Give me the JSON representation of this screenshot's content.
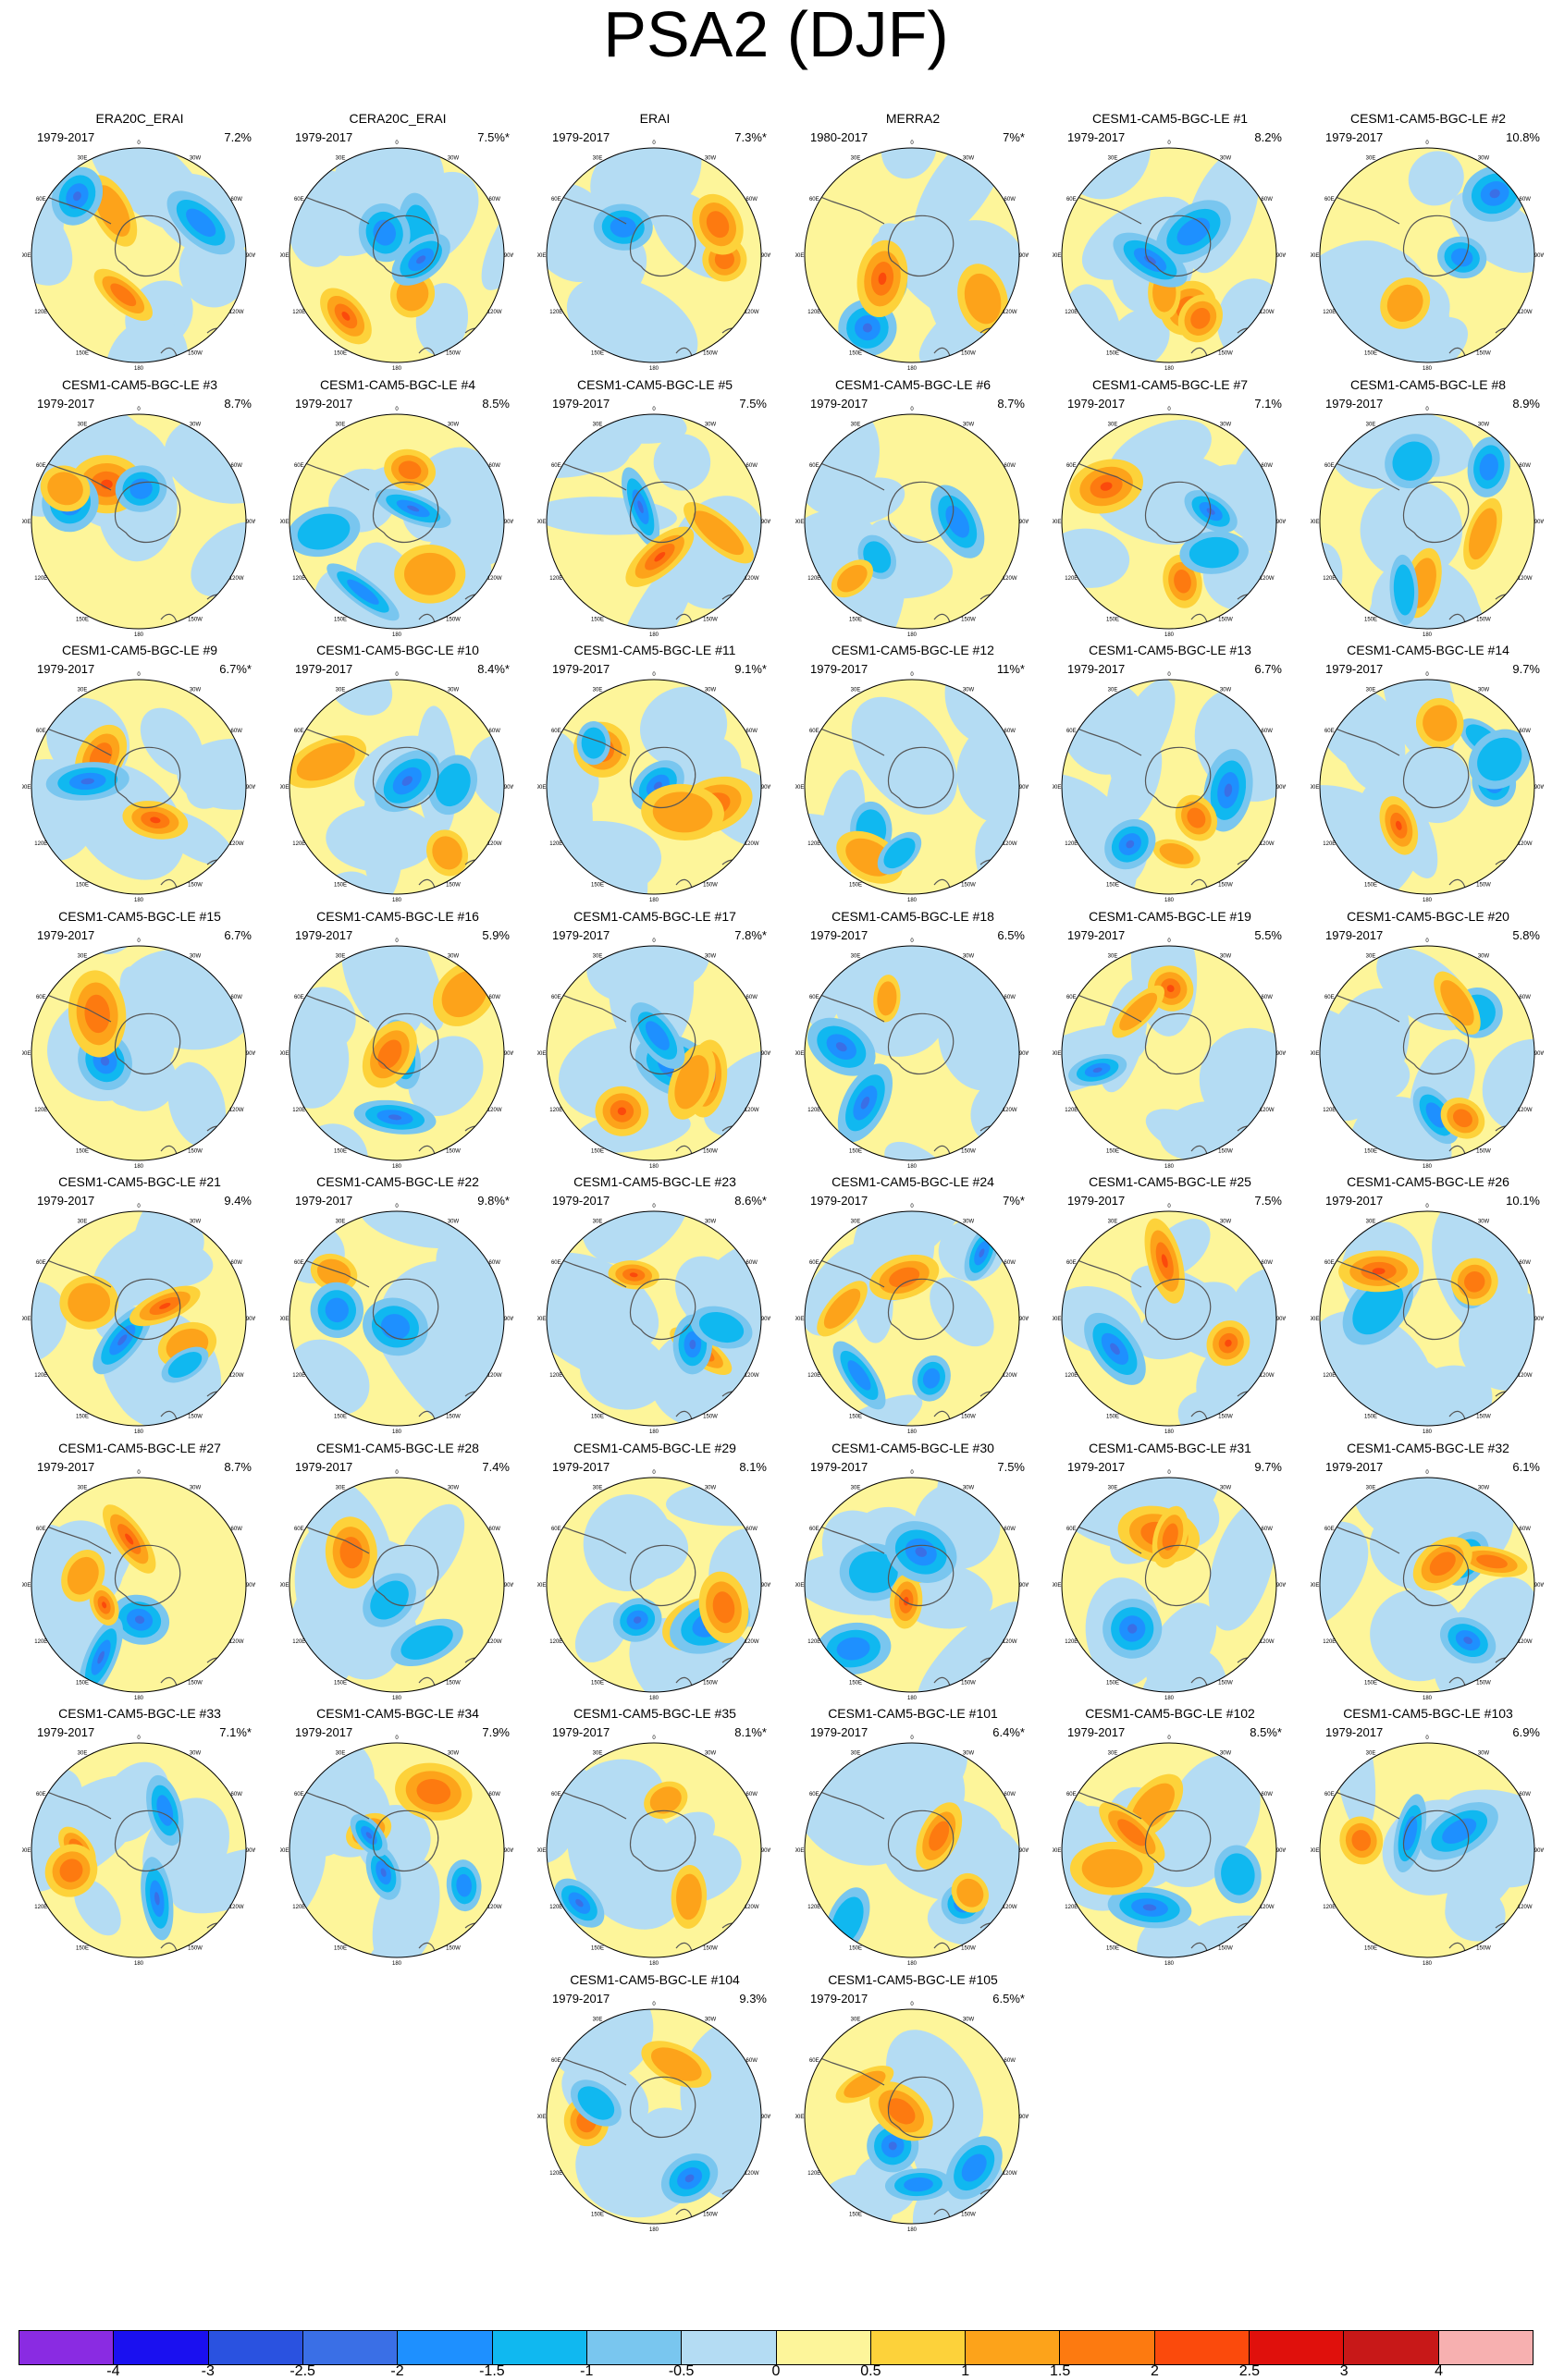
{
  "title": "PSA2 (DJF)",
  "map_axis_labels": {
    "lon_ticks": [
      "0",
      "30E",
      "60E",
      "90E",
      "120E",
      "150E",
      "180",
      "150W",
      "120W",
      "90W",
      "60W",
      "30W"
    ]
  },
  "colorbar": {
    "colors": [
      "#8a2be2",
      "#1a10f0",
      "#2a52e0",
      "#3a6fe6",
      "#1e90ff",
      "#10b8f0",
      "#79c6ef",
      "#b4dcf3",
      "#fdf59a",
      "#fdd23a",
      "#fda31a",
      "#fd7a10",
      "#fb4a0c",
      "#e0100c",
      "#c81818",
      "#f7b0b0"
    ],
    "labels": [
      "-4",
      "-3",
      "-2.5",
      "-2",
      "-1.5",
      "-1",
      "-0.5",
      "0",
      "0.5",
      "1",
      "1.5",
      "2",
      "2.5",
      "3",
      "4"
    ]
  },
  "panels": [
    {
      "title": "ERA20C_ERAI",
      "years": "1979-2017",
      "pct": "7.2%"
    },
    {
      "title": "CERA20C_ERAI",
      "years": "1979-2017",
      "pct": "7.5%*"
    },
    {
      "title": "ERAI",
      "years": "1979-2017",
      "pct": "7.3%*"
    },
    {
      "title": "MERRA2",
      "years": "1980-2017",
      "pct": "7%*"
    },
    {
      "title": "CESM1-CAM5-BGC-LE #1",
      "years": "1979-2017",
      "pct": "8.2%"
    },
    {
      "title": "CESM1-CAM5-BGC-LE #2",
      "years": "1979-2017",
      "pct": "10.8%"
    },
    {
      "title": "CESM1-CAM5-BGC-LE #3",
      "years": "1979-2017",
      "pct": "8.7%"
    },
    {
      "title": "CESM1-CAM5-BGC-LE #4",
      "years": "1979-2017",
      "pct": "8.5%"
    },
    {
      "title": "CESM1-CAM5-BGC-LE #5",
      "years": "1979-2017",
      "pct": "7.5%"
    },
    {
      "title": "CESM1-CAM5-BGC-LE #6",
      "years": "1979-2017",
      "pct": "8.7%"
    },
    {
      "title": "CESM1-CAM5-BGC-LE #7",
      "years": "1979-2017",
      "pct": "7.1%"
    },
    {
      "title": "CESM1-CAM5-BGC-LE #8",
      "years": "1979-2017",
      "pct": "8.9%"
    },
    {
      "title": "CESM1-CAM5-BGC-LE #9",
      "years": "1979-2017",
      "pct": "6.7%*"
    },
    {
      "title": "CESM1-CAM5-BGC-LE #10",
      "years": "1979-2017",
      "pct": "8.4%*"
    },
    {
      "title": "CESM1-CAM5-BGC-LE #11",
      "years": "1979-2017",
      "pct": "9.1%*"
    },
    {
      "title": "CESM1-CAM5-BGC-LE #12",
      "years": "1979-2017",
      "pct": "11%*"
    },
    {
      "title": "CESM1-CAM5-BGC-LE #13",
      "years": "1979-2017",
      "pct": "6.7%"
    },
    {
      "title": "CESM1-CAM5-BGC-LE #14",
      "years": "1979-2017",
      "pct": "9.7%"
    },
    {
      "title": "CESM1-CAM5-BGC-LE #15",
      "years": "1979-2017",
      "pct": "6.7%"
    },
    {
      "title": "CESM1-CAM5-BGC-LE #16",
      "years": "1979-2017",
      "pct": "5.9%"
    },
    {
      "title": "CESM1-CAM5-BGC-LE #17",
      "years": "1979-2017",
      "pct": "7.8%*"
    },
    {
      "title": "CESM1-CAM5-BGC-LE #18",
      "years": "1979-2017",
      "pct": "6.5%"
    },
    {
      "title": "CESM1-CAM5-BGC-LE #19",
      "years": "1979-2017",
      "pct": "5.5%"
    },
    {
      "title": "CESM1-CAM5-BGC-LE #20",
      "years": "1979-2017",
      "pct": "5.8%"
    },
    {
      "title": "CESM1-CAM5-BGC-LE #21",
      "years": "1979-2017",
      "pct": "9.4%"
    },
    {
      "title": "CESM1-CAM5-BGC-LE #22",
      "years": "1979-2017",
      "pct": "9.8%*"
    },
    {
      "title": "CESM1-CAM5-BGC-LE #23",
      "years": "1979-2017",
      "pct": "8.6%*"
    },
    {
      "title": "CESM1-CAM5-BGC-LE #24",
      "years": "1979-2017",
      "pct": "7%*"
    },
    {
      "title": "CESM1-CAM5-BGC-LE #25",
      "years": "1979-2017",
      "pct": "7.5%"
    },
    {
      "title": "CESM1-CAM5-BGC-LE #26",
      "years": "1979-2017",
      "pct": "10.1%"
    },
    {
      "title": "CESM1-CAM5-BGC-LE #27",
      "years": "1979-2017",
      "pct": "8.7%"
    },
    {
      "title": "CESM1-CAM5-BGC-LE #28",
      "years": "1979-2017",
      "pct": "7.4%"
    },
    {
      "title": "CESM1-CAM5-BGC-LE #29",
      "years": "1979-2017",
      "pct": "8.1%"
    },
    {
      "title": "CESM1-CAM5-BGC-LE #30",
      "years": "1979-2017",
      "pct": "7.5%"
    },
    {
      "title": "CESM1-CAM5-BGC-LE #31",
      "years": "1979-2017",
      "pct": "9.7%"
    },
    {
      "title": "CESM1-CAM5-BGC-LE #32",
      "years": "1979-2017",
      "pct": "6.1%"
    },
    {
      "title": "CESM1-CAM5-BGC-LE #33",
      "years": "1979-2017",
      "pct": "7.1%*"
    },
    {
      "title": "CESM1-CAM5-BGC-LE #34",
      "years": "1979-2017",
      "pct": "7.9%"
    },
    {
      "title": "CESM1-CAM5-BGC-LE #35",
      "years": "1979-2017",
      "pct": "8.1%*"
    },
    {
      "title": "CESM1-CAM5-BGC-LE #101",
      "years": "1979-2017",
      "pct": "6.4%*"
    },
    {
      "title": "CESM1-CAM5-BGC-LE #102",
      "years": "1979-2017",
      "pct": "8.5%*"
    },
    {
      "title": "CESM1-CAM5-BGC-LE #103",
      "years": "1979-2017",
      "pct": "6.9%"
    },
    {
      "title": "CESM1-CAM5-BGC-LE #104",
      "years": "1979-2017",
      "pct": "9.3%"
    },
    {
      "title": "CESM1-CAM5-BGC-LE #105",
      "years": "1979-2017",
      "pct": "6.5%*"
    }
  ]
}
